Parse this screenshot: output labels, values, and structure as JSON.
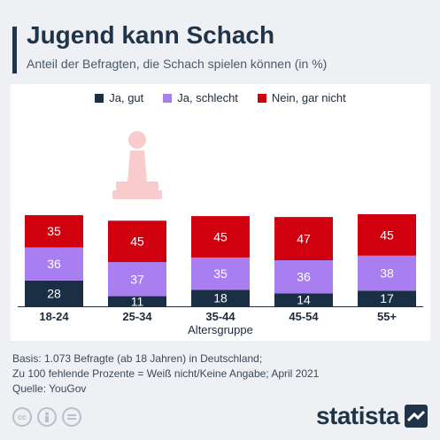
{
  "header": {
    "title": "Jugend kann Schach",
    "subtitle": "Anteil der Befragten, die Schach spielen können (in %)"
  },
  "legend": [
    {
      "label": "Ja, gut",
      "color": "#1a2e44"
    },
    {
      "label": "Ja, schlecht",
      "color": "#a97ef0"
    },
    {
      "label": "Nein, gar nicht",
      "color": "#d0000f"
    }
  ],
  "chart_data": {
    "type": "bar",
    "stacked": true,
    "categories": [
      "18-24",
      "25-34",
      "35-44",
      "45-54",
      "55+"
    ],
    "series": [
      {
        "name": "Ja, gut",
        "values": [
          28,
          11,
          18,
          14,
          17
        ],
        "color": "#1a2e44"
      },
      {
        "name": "Ja, schlecht",
        "values": [
          36,
          37,
          35,
          36,
          38
        ],
        "color": "#a97ef0"
      },
      {
        "name": "Nein, gar nicht",
        "values": [
          35,
          45,
          45,
          47,
          45
        ],
        "color": "#d0000f"
      }
    ],
    "xlabel": "Altersgruppe",
    "ylabel": "",
    "ylim": [
      0,
      100
    ],
    "grid": false,
    "legend_position": "top"
  },
  "footnotes": [
    "Basis: 1.073 Befragte (ab 18 Jahren) in Deutschland;",
    "Zu 100 fehlende Prozente = Weiß nicht/Keine Angabe; April 2021",
    "Quelle: YouGov"
  ],
  "license_icons": [
    "cc-icon",
    "person-icon",
    "equals-icon"
  ],
  "brand": {
    "name": "statista"
  },
  "decorations": {
    "pawn_icon": "chess-pawn-icon"
  }
}
